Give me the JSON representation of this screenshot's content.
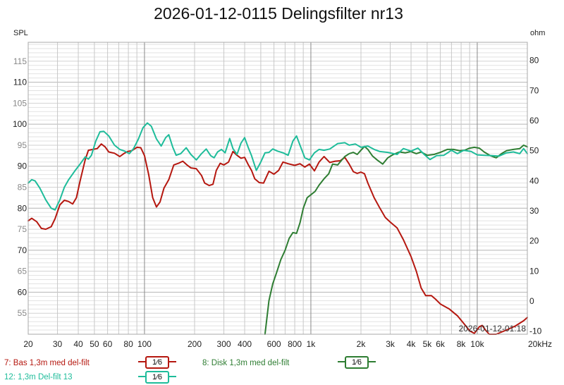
{
  "title": "2026-01-12-0115 Delingsfilter nr13",
  "axes": {
    "left_unit": "SPL",
    "right_unit": "ohm",
    "x_unit_suffix": "Hz",
    "timestamp": "2026-01-12-01:18"
  },
  "legend": [
    {
      "id": "7",
      "label": "7: Bas 1,3m med del-filt",
      "smoothing": "1⁄6",
      "color": "#b5170f"
    },
    {
      "id": "8",
      "label": "8: Disk 1,3m med del-filt",
      "smoothing": "1⁄6",
      "color": "#2e7d32"
    },
    {
      "id": "12",
      "label": "12: 1,3m  Del-filt 13",
      "smoothing": "1⁄6",
      "color": "#1ebc9a"
    }
  ],
  "chart_data": {
    "type": "line",
    "title": "2026-01-12-0115 Delingsfilter nr13",
    "xlabel": "Hz",
    "ylabel": "SPL",
    "y2label": "ohm",
    "x_scale": "log",
    "xlim": [
      20,
      20000
    ],
    "ylim": [
      50,
      119.5
    ],
    "y2lim": [
      -11,
      86
    ],
    "grid": true,
    "legend_position": "bottom",
    "x_ticks": [
      {
        "v": 20,
        "label": "20"
      },
      {
        "v": 30,
        "label": "30"
      },
      {
        "v": 40,
        "label": "40"
      },
      {
        "v": 50,
        "label": "50"
      },
      {
        "v": 60,
        "label": "60"
      },
      {
        "v": 80,
        "label": "80"
      },
      {
        "v": 100,
        "label": "100"
      },
      {
        "v": 200,
        "label": "200"
      },
      {
        "v": 300,
        "label": "300"
      },
      {
        "v": 400,
        "label": "400"
      },
      {
        "v": 600,
        "label": "600"
      },
      {
        "v": 800,
        "label": "800"
      },
      {
        "v": 1000,
        "label": "1k"
      },
      {
        "v": 2000,
        "label": "2k"
      },
      {
        "v": 3000,
        "label": "3k"
      },
      {
        "v": 4000,
        "label": "4k"
      },
      {
        "v": 5000,
        "label": "5k"
      },
      {
        "v": 6000,
        "label": "6k"
      },
      {
        "v": 8000,
        "label": "8k"
      },
      {
        "v": 10000,
        "label": "10k"
      },
      {
        "v": 20000,
        "label": "20kHz"
      }
    ],
    "y_ticks": [
      55,
      60,
      65,
      70,
      75,
      80,
      85,
      90,
      95,
      100,
      105,
      110,
      115
    ],
    "y2_ticks": [
      -10,
      0,
      10,
      20,
      30,
      40,
      50,
      60,
      70,
      80
    ],
    "series": [
      {
        "name": "7: Bas 1,3m med del-filt",
        "color": "#b5170f",
        "points": [
          [
            20,
            77.0
          ],
          [
            21,
            77.6
          ],
          [
            22.5,
            76.8
          ],
          [
            24,
            75.2
          ],
          [
            25.5,
            75.0
          ],
          [
            27.5,
            75.6
          ],
          [
            29,
            77.5
          ],
          [
            31,
            80.8
          ],
          [
            33,
            81.9
          ],
          [
            35,
            81.6
          ],
          [
            37,
            81.0
          ],
          [
            39,
            82.5
          ],
          [
            41,
            86.5
          ],
          [
            44,
            91.5
          ],
          [
            46,
            93.8
          ],
          [
            49,
            94.0
          ],
          [
            52,
            94.2
          ],
          [
            55,
            95.3
          ],
          [
            58,
            94.6
          ],
          [
            61,
            93.4
          ],
          [
            66,
            93.1
          ],
          [
            71,
            92.3
          ],
          [
            75,
            93.0
          ],
          [
            79,
            93.5
          ],
          [
            84,
            93.7
          ],
          [
            90,
            94.5
          ],
          [
            95,
            94.4
          ],
          [
            100,
            92.5
          ],
          [
            106,
            88
          ],
          [
            112,
            82.5
          ],
          [
            118,
            80.3
          ],
          [
            124,
            81.5
          ],
          [
            131,
            84.8
          ],
          [
            140,
            86.8
          ],
          [
            150,
            90.3
          ],
          [
            160,
            90.7
          ],
          [
            170,
            91.2
          ],
          [
            180,
            90.3
          ],
          [
            190,
            89.6
          ],
          [
            205,
            89.4
          ],
          [
            220,
            87.8
          ],
          [
            230,
            86.0
          ],
          [
            245,
            85.4
          ],
          [
            258,
            85.7
          ],
          [
            270,
            89
          ],
          [
            285,
            90.7
          ],
          [
            300,
            90.3
          ],
          [
            320,
            91
          ],
          [
            340,
            93.5
          ],
          [
            360,
            92.6
          ],
          [
            380,
            91.9
          ],
          [
            400,
            92.1
          ],
          [
            420,
            90.4
          ],
          [
            440,
            89
          ],
          [
            460,
            87
          ],
          [
            490,
            86.1
          ],
          [
            520,
            86.0
          ],
          [
            560,
            88.8
          ],
          [
            600,
            88.1
          ],
          [
            640,
            89.0
          ],
          [
            680,
            91.0
          ],
          [
            730,
            90.6
          ],
          [
            800,
            90.2
          ],
          [
            860,
            90.6
          ],
          [
            920,
            89.8
          ],
          [
            980,
            90.5
          ],
          [
            1050,
            88.9
          ],
          [
            1120,
            91
          ],
          [
            1200,
            92.3
          ],
          [
            1300,
            90.9
          ],
          [
            1400,
            91.2
          ],
          [
            1500,
            91.3
          ],
          [
            1600,
            92.1
          ],
          [
            1700,
            90.5
          ],
          [
            1800,
            88.7
          ],
          [
            1900,
            88.3
          ],
          [
            2000,
            88.6
          ],
          [
            2100,
            88.2
          ],
          [
            2200,
            86.0
          ],
          [
            2400,
            82.5
          ],
          [
            2600,
            80.0
          ],
          [
            2800,
            77.8
          ],
          [
            3000,
            76.7
          ],
          [
            3300,
            75.3
          ],
          [
            3600,
            72.5
          ],
          [
            4000,
            68.5
          ],
          [
            4300,
            65.0
          ],
          [
            4600,
            61.0
          ],
          [
            4900,
            59.2
          ],
          [
            5300,
            59.2
          ],
          [
            5600,
            58.4
          ],
          [
            6000,
            57.2
          ],
          [
            6800,
            56.0
          ],
          [
            7600,
            54.4
          ],
          [
            8400,
            52.3
          ],
          [
            9000,
            50.8
          ],
          [
            9600,
            50.2
          ],
          [
            10300,
            51.8
          ],
          [
            10700,
            52.1
          ],
          [
            11200,
            51.0
          ],
          [
            11800,
            49.7
          ],
          [
            13000,
            50.0
          ],
          [
            15000,
            51.0
          ],
          [
            17000,
            52.0
          ],
          [
            19000,
            53.2
          ],
          [
            20000,
            54.0
          ]
        ]
      },
      {
        "name": "8: Disk 1,3m med del-filt",
        "color": "#2e7d32",
        "points": [
          [
            530,
            50.0
          ],
          [
            560,
            58
          ],
          [
            590,
            62.0
          ],
          [
            620,
            64.5
          ],
          [
            660,
            67.8
          ],
          [
            700,
            70.0
          ],
          [
            740,
            72.8
          ],
          [
            780,
            74.2
          ],
          [
            820,
            74.0
          ],
          [
            860,
            76.5
          ],
          [
            900,
            80
          ],
          [
            950,
            82.5
          ],
          [
            1000,
            83.2
          ],
          [
            1060,
            84.0
          ],
          [
            1120,
            85.5
          ],
          [
            1200,
            87
          ],
          [
            1280,
            88.2
          ],
          [
            1350,
            90.5
          ],
          [
            1450,
            90.3
          ],
          [
            1520,
            91.3
          ],
          [
            1600,
            92.3
          ],
          [
            1700,
            93.0
          ],
          [
            1800,
            93.3
          ],
          [
            1900,
            92.8
          ],
          [
            2000,
            93.8
          ],
          [
            2100,
            94.7
          ],
          [
            2200,
            94.0
          ],
          [
            2350,
            92.4
          ],
          [
            2500,
            91.5
          ],
          [
            2700,
            90.5
          ],
          [
            2900,
            92.0
          ],
          [
            3100,
            92.7
          ],
          [
            3400,
            93.4
          ],
          [
            3700,
            93.2
          ],
          [
            4000,
            93.5
          ],
          [
            4300,
            93.0
          ],
          [
            4600,
            93.4
          ],
          [
            5000,
            92.6
          ],
          [
            5500,
            92.8
          ],
          [
            6000,
            93.3
          ],
          [
            6600,
            94.0
          ],
          [
            7200,
            94.0
          ],
          [
            7800,
            93.7
          ],
          [
            8400,
            93.8
          ],
          [
            9000,
            94.3
          ],
          [
            9600,
            94.5
          ],
          [
            10300,
            94.3
          ],
          [
            11000,
            93.4
          ],
          [
            12000,
            92.5
          ],
          [
            13000,
            92.0
          ],
          [
            14000,
            93.0
          ],
          [
            15000,
            93.7
          ],
          [
            16500,
            94.0
          ],
          [
            18000,
            94.2
          ],
          [
            19000,
            95.0
          ],
          [
            20000,
            94.6
          ]
        ]
      },
      {
        "name": "12: 1,3m  Del-filt 13",
        "color": "#1ebc9a",
        "points": [
          [
            20,
            86.0
          ],
          [
            21,
            86.8
          ],
          [
            22,
            86.5
          ],
          [
            23.5,
            84.8
          ],
          [
            25.5,
            82.0
          ],
          [
            27.5,
            80.0
          ],
          [
            29,
            79.6
          ],
          [
            31,
            82.0
          ],
          [
            33,
            85.0
          ],
          [
            35,
            86.8
          ],
          [
            38,
            88.8
          ],
          [
            41,
            90.5
          ],
          [
            44,
            92.2
          ],
          [
            46,
            91.7
          ],
          [
            48,
            92.6
          ],
          [
            51,
            96.0
          ],
          [
            54,
            98.2
          ],
          [
            57,
            98.3
          ],
          [
            61,
            97.2
          ],
          [
            66,
            95.0
          ],
          [
            71,
            94.0
          ],
          [
            76,
            93.6
          ],
          [
            81,
            93.0
          ],
          [
            86,
            94.2
          ],
          [
            92,
            96.5
          ],
          [
            98,
            99.2
          ],
          [
            104,
            100.3
          ],
          [
            110,
            99.5
          ],
          [
            118,
            96.5
          ],
          [
            126,
            94.8
          ],
          [
            134,
            96.8
          ],
          [
            140,
            97.5
          ],
          [
            148,
            94.5
          ],
          [
            155,
            92.6
          ],
          [
            165,
            93.0
          ],
          [
            178,
            94.4
          ],
          [
            190,
            92.8
          ],
          [
            205,
            91.5
          ],
          [
            220,
            93.0
          ],
          [
            235,
            94.1
          ],
          [
            250,
            92.5
          ],
          [
            262,
            92.0
          ],
          [
            275,
            93.4
          ],
          [
            290,
            94.0
          ],
          [
            305,
            93.2
          ],
          [
            325,
            96.6
          ],
          [
            340,
            94.2
          ],
          [
            360,
            92.8
          ],
          [
            380,
            95.5
          ],
          [
            400,
            96.8
          ],
          [
            420,
            94.5
          ],
          [
            440,
            92.5
          ],
          [
            470,
            89.0
          ],
          [
            500,
            91.0
          ],
          [
            530,
            93.2
          ],
          [
            560,
            93.3
          ],
          [
            590,
            94.1
          ],
          [
            630,
            93.6
          ],
          [
            680,
            93.2
          ],
          [
            730,
            92.6
          ],
          [
            780,
            96.0
          ],
          [
            820,
            97.2
          ],
          [
            860,
            95.0
          ],
          [
            920,
            92.0
          ],
          [
            980,
            91.5
          ],
          [
            1050,
            93.2
          ],
          [
            1120,
            94.0
          ],
          [
            1200,
            93.8
          ],
          [
            1300,
            94.1
          ],
          [
            1450,
            95.4
          ],
          [
            1600,
            95.6
          ],
          [
            1700,
            95.0
          ],
          [
            1850,
            95.3
          ],
          [
            2000,
            94.5
          ],
          [
            2200,
            94.8
          ],
          [
            2400,
            94.0
          ],
          [
            2600,
            93.5
          ],
          [
            2900,
            93.3
          ],
          [
            3300,
            92.8
          ],
          [
            3600,
            94.2
          ],
          [
            4000,
            93.6
          ],
          [
            4400,
            94.3
          ],
          [
            4800,
            92.8
          ],
          [
            5200,
            91.6
          ],
          [
            5700,
            92.5
          ],
          [
            6300,
            92.6
          ],
          [
            7000,
            93.8
          ],
          [
            7600,
            93.0
          ],
          [
            8300,
            93.8
          ],
          [
            9200,
            93.5
          ],
          [
            10000,
            92.7
          ],
          [
            11000,
            92.6
          ],
          [
            12300,
            92.5
          ],
          [
            13500,
            92.4
          ],
          [
            15000,
            93.2
          ],
          [
            16500,
            93.4
          ],
          [
            18000,
            93.0
          ],
          [
            19000,
            94.2
          ],
          [
            20000,
            93.0
          ]
        ]
      }
    ]
  }
}
